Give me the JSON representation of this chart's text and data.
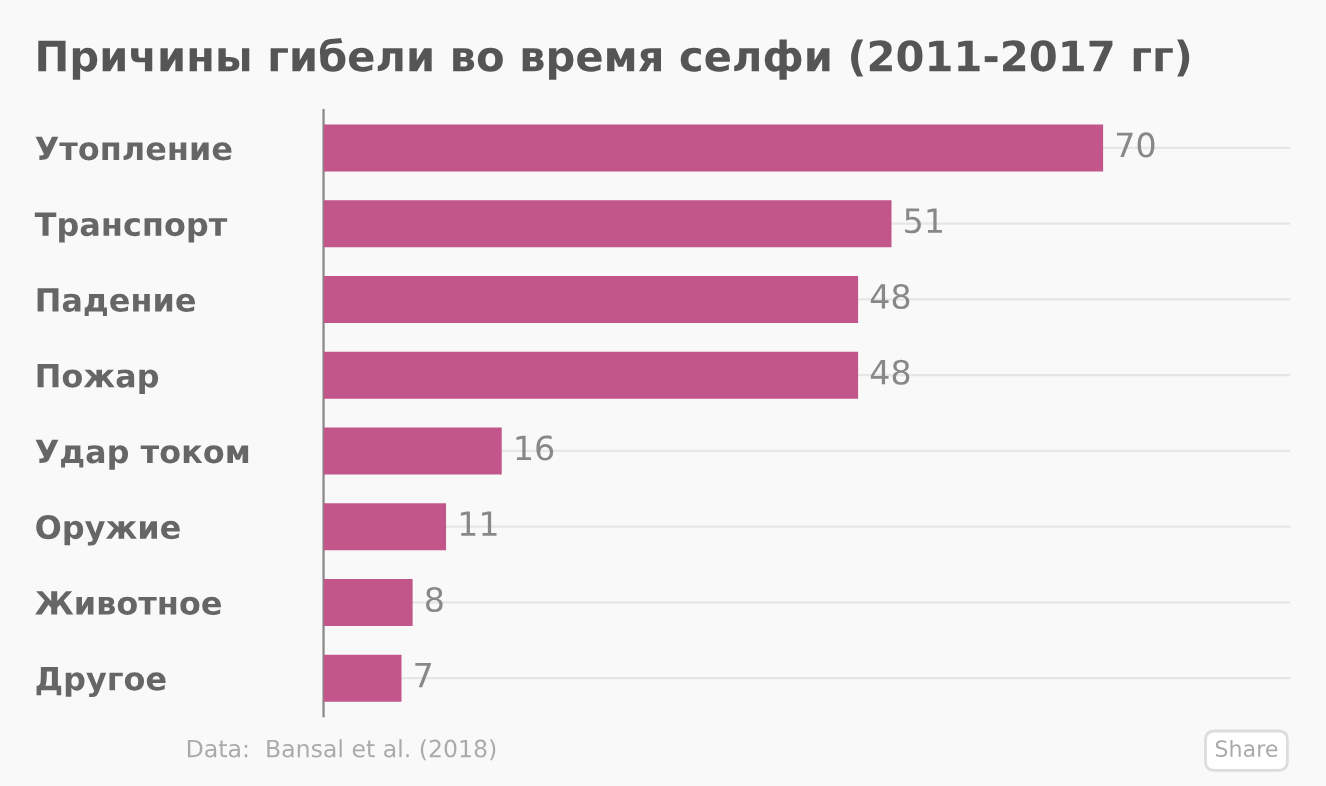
{
  "chart_data": {
    "type": "bar",
    "orientation": "horizontal",
    "title": "Причины гибели во время селфи (2011-2017 гг)",
    "categories": [
      "Утопление",
      "Транспорт",
      "Падение",
      "Пожар",
      "Удар током",
      "Оружие",
      "Животное",
      "Другое"
    ],
    "values": [
      70,
      51,
      48,
      48,
      16,
      11,
      8,
      7
    ],
    "color": "#c2558a",
    "data_labels": true,
    "grid": "y",
    "tick_labels": "y",
    "annotations": [
      "Data:  Bansal et al. (2018)",
      "Share"
    ]
  }
}
